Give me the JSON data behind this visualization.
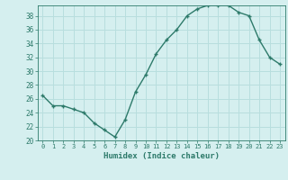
{
  "x": [
    0,
    1,
    2,
    3,
    4,
    5,
    6,
    7,
    8,
    9,
    10,
    11,
    12,
    13,
    14,
    15,
    16,
    17,
    18,
    19,
    20,
    21,
    22,
    23
  ],
  "y": [
    26.5,
    25.0,
    25.0,
    24.5,
    24.0,
    22.5,
    21.5,
    20.5,
    23.0,
    27.0,
    29.5,
    32.5,
    34.5,
    36.0,
    38.0,
    39.0,
    39.5,
    39.5,
    39.5,
    38.5,
    38.0,
    34.5,
    32.0,
    31.0
  ],
  "ylim": [
    20,
    39.5
  ],
  "yticks": [
    20,
    22,
    24,
    26,
    28,
    30,
    32,
    34,
    36,
    38
  ],
  "xticks": [
    0,
    1,
    2,
    3,
    4,
    5,
    6,
    7,
    8,
    9,
    10,
    11,
    12,
    13,
    14,
    15,
    16,
    17,
    18,
    19,
    20,
    21,
    22,
    23
  ],
  "xlabel": "Humidex (Indice chaleur)",
  "line_color": "#2d7a6a",
  "marker": "+",
  "bg_color": "#d5efef",
  "grid_color": "#b8dede",
  "tick_color": "#2d7a6a",
  "label_color": "#2d7a6a",
  "font_family": "monospace",
  "markersize": 3.5,
  "linewidth": 1.0
}
